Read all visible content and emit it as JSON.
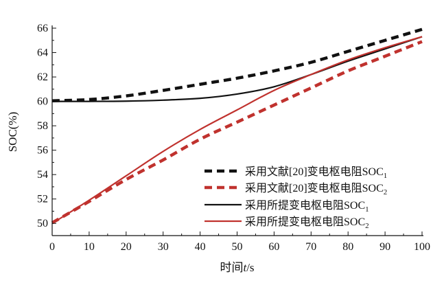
{
  "chart_data": {
    "type": "line",
    "title": "",
    "xlabel": "时间t/s",
    "xlabel_parts": {
      "prefix": "时间",
      "italic": "t",
      "suffix": "/s"
    },
    "ylabel": "SOC(%)",
    "xlim": [
      0,
      100
    ],
    "ylim": [
      49,
      66
    ],
    "x_ticks": [
      0,
      10,
      20,
      30,
      40,
      50,
      60,
      70,
      80,
      90,
      100
    ],
    "y_ticks": [
      50,
      52,
      54,
      56,
      58,
      60,
      62,
      64,
      66
    ],
    "grid": false,
    "legend_position": "bottom-right",
    "series": [
      {
        "name": "采用文献[20]变电枢电阻SOC1",
        "name_main": "采用文献[20]变电枢电阻SOC",
        "name_sub": "1",
        "color": "#111111",
        "style": "dashed",
        "x": [
          0,
          10,
          20,
          30,
          40,
          50,
          60,
          70,
          80,
          90,
          100
        ],
        "y": [
          60.05,
          60.15,
          60.45,
          60.9,
          61.4,
          61.9,
          62.5,
          63.2,
          64.1,
          65.0,
          65.9
        ]
      },
      {
        "name": "采用文献[20]变电枢电阻SOC2",
        "name_main": "采用文献[20]变电枢电阻SOC",
        "name_sub": "2",
        "color": "#c0322e",
        "style": "dashed",
        "x": [
          0,
          10,
          20,
          30,
          40,
          50,
          60,
          70,
          80,
          90,
          100
        ],
        "y": [
          50.05,
          51.8,
          53.6,
          55.2,
          56.9,
          58.3,
          59.7,
          61.1,
          62.5,
          63.7,
          64.9
        ]
      },
      {
        "name": "采用所提变电枢电阻SOC1",
        "name_main": "采用所提变电枢电阻SOC",
        "name_sub": "1",
        "color": "#111111",
        "style": "solid",
        "x": [
          0,
          10,
          20,
          30,
          40,
          50,
          60,
          70,
          80,
          90,
          100
        ],
        "y": [
          60.0,
          60.0,
          60.02,
          60.1,
          60.25,
          60.6,
          61.2,
          62.2,
          63.3,
          64.3,
          65.3
        ]
      },
      {
        "name": "采用所提变电枢电阻SOC2",
        "name_main": "采用所提变电枢电阻SOC",
        "name_sub": "2",
        "color": "#c0322e",
        "style": "solid",
        "x": [
          0,
          10,
          20,
          30,
          40,
          50,
          60,
          70,
          80,
          90,
          100
        ],
        "y": [
          50.0,
          51.9,
          53.9,
          55.9,
          57.7,
          59.3,
          60.9,
          62.2,
          63.4,
          64.4,
          65.3
        ]
      }
    ]
  }
}
